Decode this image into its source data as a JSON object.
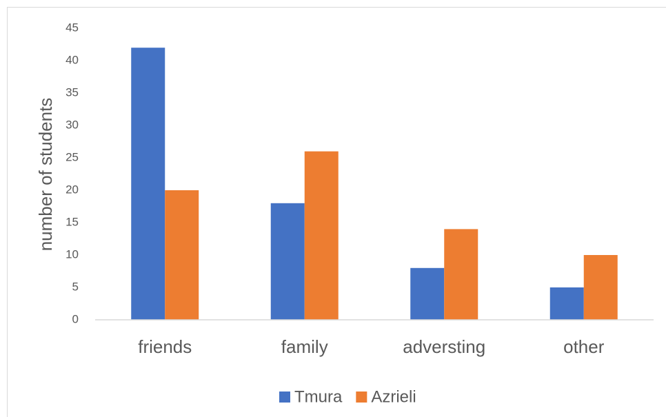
{
  "chart_data": {
    "type": "bar",
    "y_label": "number of students",
    "categories": [
      "friends",
      "family",
      "adversting",
      "other"
    ],
    "series": [
      {
        "name": "Tmura",
        "color": "#4472c4",
        "values": [
          42,
          18,
          8,
          5
        ]
      },
      {
        "name": "Azrieli",
        "color": "#ed7d31",
        "values": [
          20,
          26,
          14,
          10
        ]
      }
    ],
    "ylim": [
      0,
      45
    ],
    "yticks": [
      0,
      5,
      10,
      15,
      20,
      25,
      30,
      35,
      40,
      45
    ],
    "grid": false,
    "legend": "bottom"
  }
}
